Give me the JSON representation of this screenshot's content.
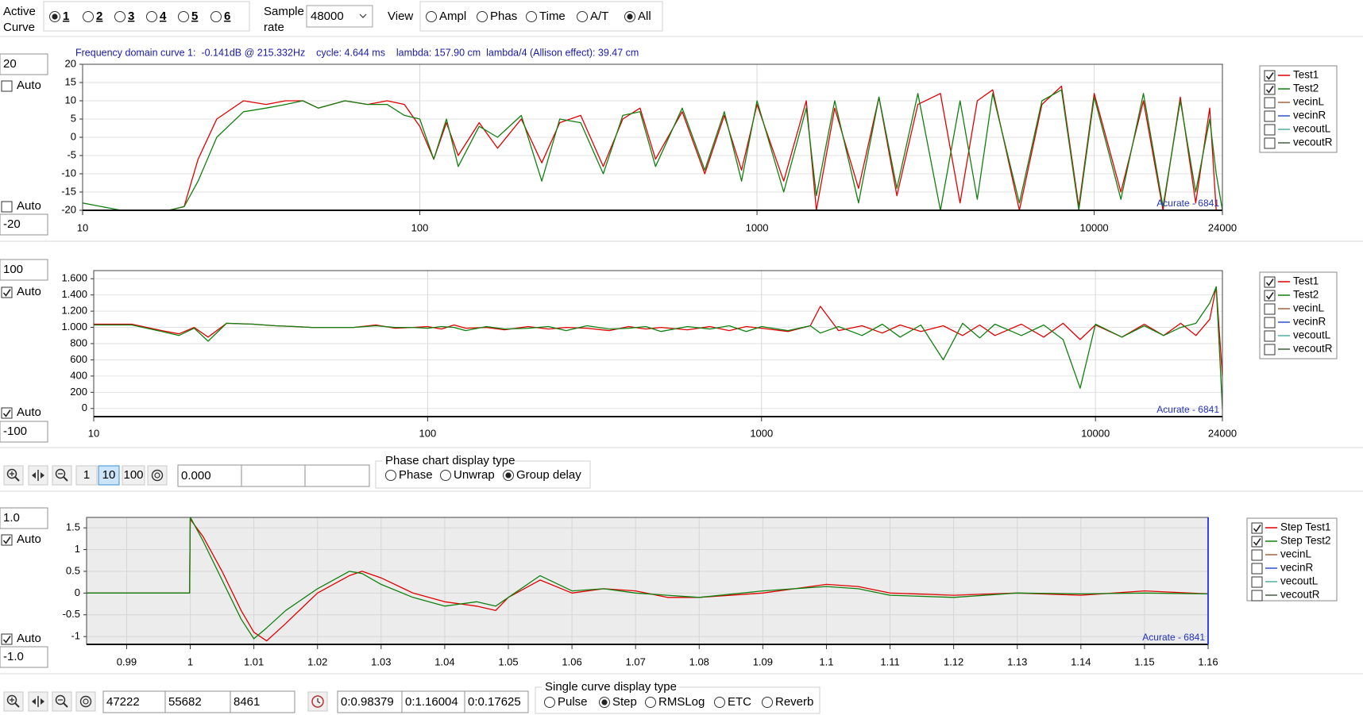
{
  "toolbar": {
    "active_curve_label": [
      "Active",
      "Curve"
    ],
    "curves": [
      "1",
      "2",
      "3",
      "4",
      "5",
      "6"
    ],
    "selected_curve": 0,
    "sample_rate_label": [
      "Sample",
      "rate"
    ],
    "sample_rate": "48000",
    "view_label": "View",
    "views": [
      "Ampl",
      "Phas",
      "Time",
      "A/T",
      "All"
    ],
    "selected_view": 4
  },
  "chart_controls": [
    {
      "max": "20",
      "min": "-20",
      "auto_label": "Auto",
      "auto_max": false,
      "auto_min": false
    },
    {
      "max": "100",
      "min": "-100",
      "auto_label": "Auto",
      "auto_max": true,
      "auto_min": true
    },
    {
      "max": "1.0",
      "min": "-1.0",
      "auto_label": "Auto",
      "auto_max": true,
      "auto_min": true
    }
  ],
  "chart_data": [
    {
      "type": "line",
      "title": "Frequency domain curve 1:  -0.141dB @ 215.332Hz    cycle: 4.644 ms    lambda: 157.90 cm  lambda/4 (Allison effect): 39.47 cm",
      "annotation": "Acurate - 6841",
      "x_scale": "log",
      "grid": true,
      "xlim": [
        10,
        24000
      ],
      "xticks": [
        10,
        100,
        1000,
        10000,
        24000
      ],
      "ylim": [
        -20,
        20
      ],
      "yticks": [
        20,
        15,
        10,
        5,
        0,
        -5,
        -10,
        -15,
        -20
      ],
      "x": [
        10,
        13,
        16,
        18,
        20,
        22,
        25,
        30,
        35,
        40,
        45,
        50,
        60,
        70,
        80,
        90,
        100,
        110,
        120,
        130,
        150,
        170,
        200,
        230,
        260,
        300,
        350,
        400,
        450,
        500,
        600,
        700,
        800,
        900,
        1000,
        1200,
        1400,
        1500,
        1700,
        2000,
        2300,
        2600,
        3000,
        3500,
        4000,
        4500,
        5000,
        6000,
        7000,
        8000,
        9000,
        10000,
        12000,
        14000,
        16000,
        18000,
        20000,
        22000,
        23000,
        24000
      ],
      "series": [
        {
          "name": "Test1",
          "color": "#e00000",
          "checked": true,
          "values": [
            null,
            null,
            null,
            -20,
            -19,
            -6,
            5,
            10,
            9,
            10,
            10,
            8,
            10,
            9,
            10,
            9,
            3,
            -6,
            4,
            -5,
            4,
            -3,
            5,
            -7,
            4,
            6,
            -8,
            5,
            8,
            -6,
            7,
            -10,
            6,
            -9,
            9,
            -12,
            10,
            -20,
            8,
            -14,
            11,
            -16,
            9,
            12,
            -18,
            10,
            13,
            -20,
            9,
            14,
            -19,
            12,
            -15,
            10,
            -20,
            11,
            -18,
            8,
            -20,
            -20
          ]
        },
        {
          "name": "Test2",
          "color": "#108010",
          "checked": true,
          "values": [
            -18,
            -20,
            -20,
            -20,
            -19,
            -12,
            0,
            7,
            8,
            9,
            10,
            8,
            10,
            9,
            9,
            6,
            5,
            -6,
            5,
            -8,
            3,
            0,
            6,
            -12,
            5,
            4,
            -10,
            6,
            7,
            -8,
            8,
            -9,
            7,
            -12,
            10,
            -15,
            8,
            -16,
            10,
            -18,
            11,
            -14,
            12,
            -20,
            10,
            -17,
            12,
            -18,
            10,
            13,
            -20,
            11,
            -17,
            12,
            -19,
            10,
            -15,
            5,
            -10,
            -20
          ]
        }
      ],
      "inactive_series": [
        {
          "name": "vecinL",
          "color": "#a0643c"
        },
        {
          "name": "vecinR",
          "color": "#3050d0"
        },
        {
          "name": "vecoutL",
          "color": "#50b0a0"
        },
        {
          "name": "vecoutR",
          "color": "#406040"
        }
      ]
    },
    {
      "type": "line",
      "annotation": "Acurate - 6841",
      "x_scale": "log",
      "grid": true,
      "xlim": [
        10,
        24000
      ],
      "xticks": [
        10,
        100,
        1000,
        10000,
        24000
      ],
      "ylim": [
        -100,
        1700
      ],
      "yticks": [
        {
          "value": 1600,
          "label": "1.600"
        },
        {
          "value": 1400,
          "label": "1.400"
        },
        {
          "value": 1200,
          "label": "1.200"
        },
        {
          "value": 1000,
          "label": "1.000"
        },
        800,
        600,
        400,
        200,
        0
      ],
      "x": [
        10,
        13,
        16,
        18,
        20,
        22,
        25,
        30,
        35,
        40,
        45,
        50,
        60,
        70,
        80,
        90,
        100,
        110,
        120,
        130,
        150,
        170,
        200,
        230,
        260,
        300,
        350,
        400,
        450,
        500,
        600,
        700,
        800,
        900,
        1000,
        1200,
        1400,
        1500,
        1700,
        2000,
        2300,
        2600,
        3000,
        3500,
        4000,
        4500,
        5000,
        6000,
        7000,
        8000,
        9000,
        10000,
        12000,
        14000,
        16000,
        18000,
        20000,
        22000,
        23000,
        24000
      ],
      "series": [
        {
          "name": "Test1",
          "color": "#e00000",
          "checked": true,
          "values": [
            1040,
            1040,
            960,
            920,
            1000,
            880,
            1050,
            1040,
            1020,
            1010,
            1000,
            1000,
            1000,
            1030,
            990,
            1000,
            1010,
            980,
            1030,
            990,
            1000,
            970,
            1010,
            980,
            1000,
            990,
            960,
            1010,
            980,
            1000,
            970,
            1010,
            960,
            1010,
            990,
            950,
            1020,
            1260,
            960,
            1020,
            930,
            1030,
            950,
            1020,
            900,
            1030,
            900,
            1040,
            880,
            1050,
            850,
            1030,
            880,
            1040,
            900,
            1050,
            900,
            1100,
            1500,
            400
          ]
        },
        {
          "name": "Test2",
          "color": "#108010",
          "checked": true,
          "values": [
            1030,
            1030,
            950,
            900,
            990,
            830,
            1050,
            1040,
            1020,
            1010,
            1000,
            1000,
            1000,
            1020,
            1000,
            1000,
            990,
            1010,
            1000,
            960,
            1010,
            980,
            990,
            1010,
            960,
            1020,
            980,
            990,
            1010,
            950,
            1010,
            980,
            1020,
            950,
            1010,
            960,
            1020,
            930,
            1010,
            900,
            1040,
            880,
            1030,
            600,
            1050,
            870,
            1040,
            900,
            1030,
            850,
            250,
            1040,
            880,
            1020,
            900,
            1000,
            1050,
            1300,
            1500,
            0
          ]
        }
      ],
      "inactive_series": [
        {
          "name": "vecinL",
          "color": "#a0643c"
        },
        {
          "name": "vecinR",
          "color": "#3050d0"
        },
        {
          "name": "vecoutL",
          "color": "#50b0a0"
        },
        {
          "name": "vecoutR",
          "color": "#406040"
        }
      ]
    },
    {
      "type": "line",
      "annotation": "Acurate - 6841",
      "x_scale": "linear",
      "grid": true,
      "xlim": [
        0.9837,
        1.16
      ],
      "xticks": [
        0.99,
        1,
        1.01,
        1.02,
        1.03,
        1.04,
        1.05,
        1.06,
        1.07,
        1.08,
        1.09,
        1.1,
        1.11,
        1.12,
        1.13,
        1.14,
        1.15,
        1.16
      ],
      "ylim": [
        -1.18,
        1.74
      ],
      "yticks": [
        1.5,
        1,
        0.5,
        0,
        -0.5,
        -1
      ],
      "x": [
        0.9837,
        0.995,
        0.9999,
        1.0,
        1.002,
        1.005,
        1.008,
        1.01,
        1.012,
        1.015,
        1.02,
        1.025,
        1.027,
        1.03,
        1.035,
        1.04,
        1.045,
        1.048,
        1.05,
        1.055,
        1.06,
        1.065,
        1.07,
        1.075,
        1.08,
        1.09,
        1.1,
        1.105,
        1.11,
        1.12,
        1.13,
        1.14,
        1.15,
        1.16
      ],
      "series": [
        {
          "name": "Step Test1",
          "color": "#e00000",
          "checked": true,
          "values": [
            0,
            0,
            0,
            1.7,
            1.3,
            0.5,
            -0.4,
            -0.9,
            -1.1,
            -0.7,
            0,
            0.4,
            0.5,
            0.35,
            0,
            -0.2,
            -0.3,
            -0.4,
            -0.1,
            0.3,
            0,
            0.1,
            0.05,
            -0.1,
            -0.1,
            0,
            0.2,
            0.15,
            0,
            -0.05,
            0,
            -0.05,
            0.05,
            -0.02
          ]
        },
        {
          "name": "Step Test2",
          "color": "#108010",
          "checked": true,
          "values": [
            0,
            0,
            0,
            1.75,
            1.2,
            0.3,
            -0.6,
            -1.05,
            -0.8,
            -0.4,
            0.1,
            0.5,
            0.45,
            0.2,
            -0.1,
            -0.3,
            -0.2,
            -0.3,
            -0.1,
            0.4,
            0.05,
            0.1,
            0,
            -0.05,
            -0.1,
            0.05,
            0.15,
            0.1,
            -0.05,
            -0.1,
            0,
            -0.02,
            0,
            -0.02
          ]
        }
      ],
      "inactive_series": [
        {
          "name": "vecinL",
          "color": "#a0643c"
        },
        {
          "name": "vecinR",
          "color": "#3050d0"
        },
        {
          "name": "vecoutL",
          "color": "#50b0a0"
        },
        {
          "name": "vecoutR",
          "color": "#406040"
        }
      ]
    }
  ],
  "phase_toolbar": {
    "zoom_levels": [
      "1",
      "10",
      "100"
    ],
    "selected_zoom": 1,
    "fields": [
      "0.000"
    ],
    "group_title": "Phase chart display type",
    "options": [
      "Phase",
      "Unwrap",
      "Group delay"
    ],
    "selected": 2
  },
  "time_toolbar": {
    "fields_a": [
      "47222",
      "55682",
      "8461"
    ],
    "fields_b": [
      "0:0.98379",
      "0:1.16004",
      "0:0.17625"
    ],
    "group_title": "Single curve display type",
    "options": [
      "Pulse",
      "Step",
      "RMSLog",
      "ETC",
      "Reverb"
    ],
    "selected": 1
  }
}
